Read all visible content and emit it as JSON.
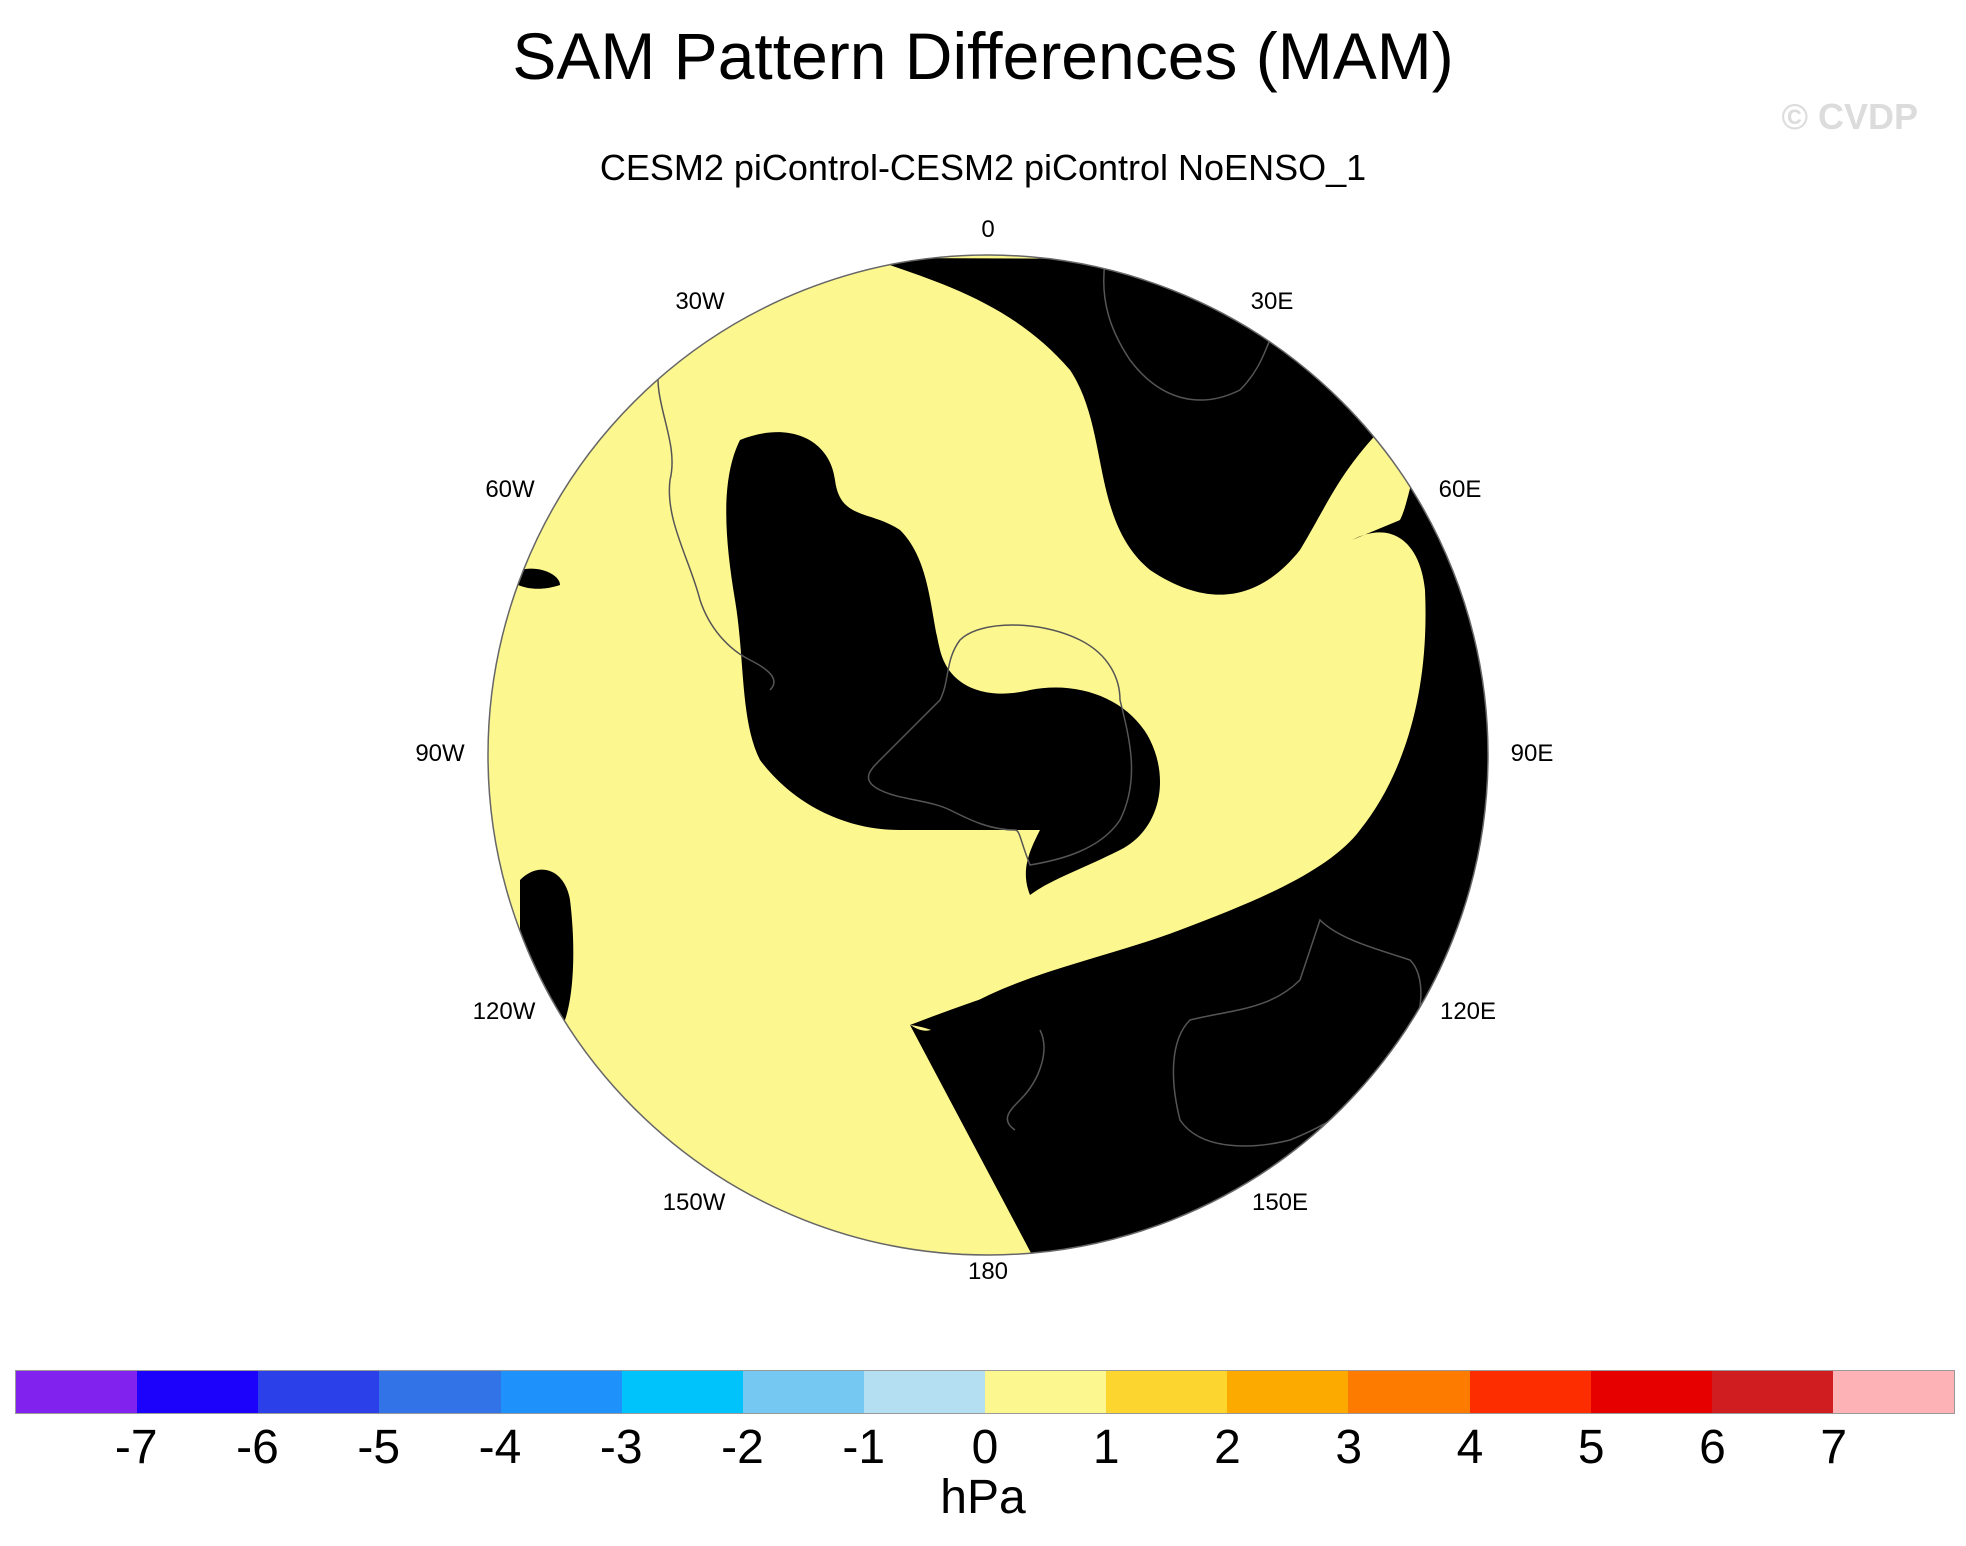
{
  "title": "SAM Pattern Differences (MAM)",
  "subtitle": "CESM2 piControl-CESM2 piControl NoENSO_1",
  "watermark": "© CVDP",
  "map": {
    "projection": "south-polar stereographic",
    "longitude_labels": [
      "0",
      "30E",
      "60E",
      "90E",
      "120E",
      "150E",
      "180",
      "150W",
      "120W",
      "90W",
      "60W",
      "30W"
    ],
    "fill_colors": {
      "negative_0_to_-1": "#b4def2",
      "positive_0_to_1": "#fdf790"
    },
    "coastline_color": "#555555"
  },
  "colorbar": {
    "units": "hPa",
    "tick_labels": [
      "-7",
      "-6",
      "-5",
      "-4",
      "-3",
      "-2",
      "-1",
      "0",
      "1",
      "2",
      "3",
      "4",
      "5",
      "6",
      "7"
    ],
    "colors": [
      "#8222ee",
      "#1d02fb",
      "#2b40e8",
      "#3274e8",
      "#1e91fb",
      "#00c3fb",
      "#74c8f2",
      "#b4def2",
      "#fdf790",
      "#fdd52f",
      "#fdaa00",
      "#fd7c00",
      "#fd2d00",
      "#e60000",
      "#d01d1f",
      "#fdb3b6"
    ]
  }
}
